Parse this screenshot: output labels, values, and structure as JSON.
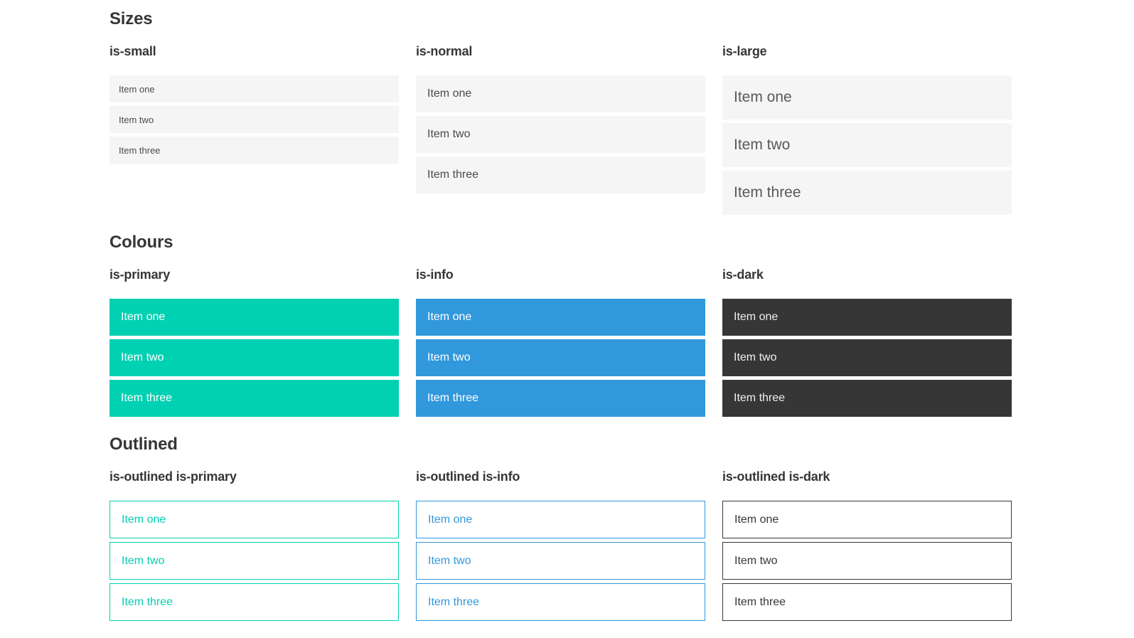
{
  "colors": {
    "primary": "#00d1b2",
    "info": "#3298dc",
    "dark": "#363636",
    "light-bg": "#f5f5f5",
    "item-text": "#4a4a4a",
    "heading-text": "#363636",
    "page-bg": "#ffffff"
  },
  "sections": [
    {
      "title": "Sizes",
      "groups": [
        {
          "heading": "is-small",
          "variant": "small",
          "items": [
            "Item one",
            "Item two",
            "Item three"
          ]
        },
        {
          "heading": "is-normal",
          "variant": "normal",
          "items": [
            "Item one",
            "Item two",
            "Item three"
          ]
        },
        {
          "heading": "is-large",
          "variant": "large",
          "items": [
            "Item one",
            "Item two",
            "Item three"
          ]
        }
      ]
    },
    {
      "title": "Colours",
      "groups": [
        {
          "heading": "is-primary",
          "variant": "primary",
          "items": [
            "Item one",
            "Item two",
            "Item three"
          ]
        },
        {
          "heading": "is-info",
          "variant": "info",
          "items": [
            "Item one",
            "Item two",
            "Item three"
          ]
        },
        {
          "heading": "is-dark",
          "variant": "dark",
          "items": [
            "Item one",
            "Item two",
            "Item three"
          ]
        }
      ]
    },
    {
      "title": "Outlined",
      "groups": [
        {
          "heading": "is-outlined is-primary",
          "variant": "outlined-primary",
          "items": [
            "Item one",
            "Item two",
            "Item three"
          ]
        },
        {
          "heading": "is-outlined is-info",
          "variant": "outlined-info",
          "items": [
            "Item one",
            "Item two",
            "Item three"
          ]
        },
        {
          "heading": "is-outlined is-dark",
          "variant": "outlined-dark",
          "items": [
            "Item one",
            "Item two",
            "Item three"
          ]
        }
      ]
    }
  ]
}
